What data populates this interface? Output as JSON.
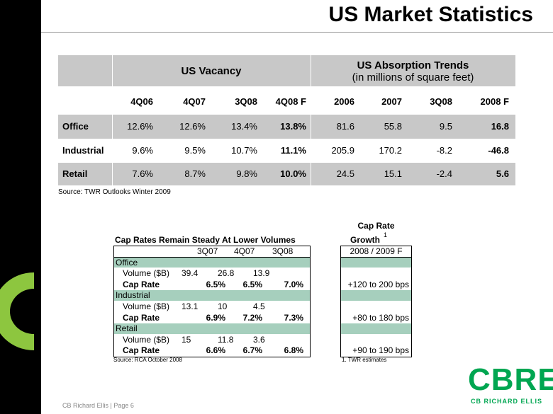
{
  "title": "US Market Statistics",
  "vacancy_table": {
    "group_headers": {
      "vacancy": "US Vacancy",
      "absorption": "US Absorption Trends",
      "absorption_sub": "(in millions of square feet)"
    },
    "columns": [
      "4Q06",
      "4Q07",
      "3Q08",
      "4Q08 F",
      "2006",
      "2007",
      "3Q08",
      "2008 F"
    ],
    "rows": [
      {
        "label": "Office",
        "cells": [
          "12.6%",
          "12.6%",
          "13.4%",
          "13.8%",
          "81.6",
          "55.8",
          "9.5",
          "16.8"
        ]
      },
      {
        "label": "Industrial",
        "cells": [
          "9.6%",
          "9.5%",
          "10.7%",
          "11.1%",
          "205.9",
          "170.2",
          "-8.2",
          "-46.8"
        ]
      },
      {
        "label": "Retail",
        "cells": [
          "7.6%",
          "8.7%",
          "9.8%",
          "10.0%",
          "24.5",
          "15.1",
          "-2.4",
          "5.6"
        ]
      }
    ],
    "source": "Source: TWR Outlooks Winter 2009"
  },
  "cap_rates": {
    "title": "Cap Rates Remain Steady At Lower Volumes",
    "columns": [
      "3Q07",
      "4Q07",
      "3Q08"
    ],
    "sections": [
      {
        "name": "Office",
        "rows": [
          {
            "label": "Volume ($B)",
            "values": [
              "39.4",
              "26.8",
              "13.9"
            ]
          },
          {
            "label": "Cap Rate",
            "values": [
              "6.5%",
              "6.5%",
              "7.0%"
            ]
          }
        ]
      },
      {
        "name": "Industrial",
        "rows": [
          {
            "label": "Volume ($B)",
            "values": [
              "13.1",
              "10",
              "4.5"
            ]
          },
          {
            "label": "Cap Rate",
            "values": [
              "6.9%",
              "7.2%",
              "7.3%"
            ]
          }
        ]
      },
      {
        "name": "Retail",
        "rows": [
          {
            "label": "Volume ($B)",
            "values": [
              "15",
              "11.8",
              "3.6"
            ]
          },
          {
            "label": "Cap Rate",
            "values": [
              "6.6%",
              "6.7%",
              "6.8%"
            ]
          }
        ]
      }
    ],
    "source": "Source: RCA October 2008"
  },
  "growth": {
    "title": "Cap Rate",
    "title_line2": "Growth",
    "footnote_mark": "1",
    "header": "2008 / 2009 F",
    "values": [
      "+120 to 200 bps",
      "+80 to 180 bps",
      "+90 to 190 bps"
    ],
    "footnote": "1. TWR estimates"
  },
  "footer": "CB Richard Ellis  |  Page 6",
  "logo": {
    "mark": "CBRE",
    "name": "CB RICHARD ELLIS"
  }
}
